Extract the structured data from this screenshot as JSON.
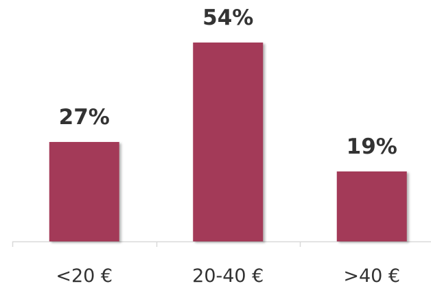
{
  "chart_data": {
    "type": "bar",
    "categories": [
      "<20 €",
      "20-40 €",
      ">40 €"
    ],
    "values": [
      27,
      54,
      19
    ],
    "value_labels": [
      "27%",
      "54%",
      "19%"
    ],
    "color": "#a33a58"
  }
}
